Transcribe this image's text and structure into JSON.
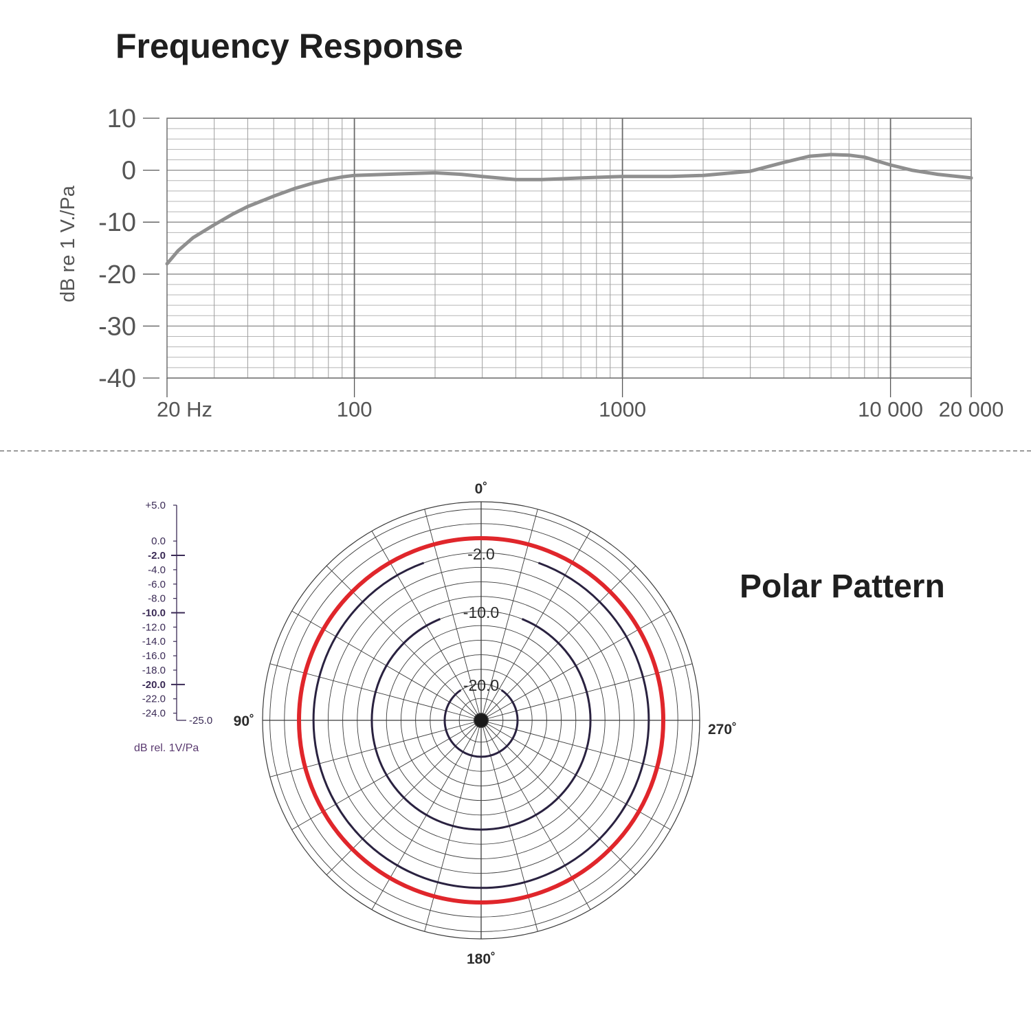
{
  "frequency_title": "Frequency Response",
  "polar_title": "Polar Pattern",
  "chart_data": [
    {
      "type": "line",
      "title": "Frequency Response",
      "xlabel": "",
      "ylabel": "dB re 1 V./Pa",
      "x_scale": "log",
      "xlim": [
        20,
        20000
      ],
      "ylim": [
        -40,
        10
      ],
      "x_ticks": [
        20,
        100,
        1000,
        10000,
        20000
      ],
      "x_tick_labels": [
        "20 Hz",
        "100",
        "1000",
        "10 000",
        "20 000"
      ],
      "y_ticks": [
        10,
        0,
        -10,
        -20,
        -30,
        -40
      ],
      "y_tick_labels": [
        "10",
        "0",
        "-10",
        "-20",
        "-30",
        "-40"
      ],
      "grid": true,
      "line_color": "#8f8f8f",
      "series": [
        {
          "x": [
            20,
            22,
            25,
            30,
            35,
            40,
            50,
            60,
            70,
            80,
            90,
            100,
            150,
            200,
            250,
            300,
            400,
            500,
            700,
            1000,
            1500,
            2000,
            3000,
            4000,
            5000,
            6000,
            7000,
            8000,
            10000,
            12000,
            15000,
            20000
          ],
          "y": [
            -18,
            -15.5,
            -13,
            -10.5,
            -8.5,
            -7,
            -5,
            -3.5,
            -2.5,
            -1.8,
            -1.3,
            -1,
            -0.7,
            -0.5,
            -0.8,
            -1.2,
            -1.8,
            -1.8,
            -1.5,
            -1.2,
            -1.2,
            -1,
            -0.2,
            1.5,
            2.7,
            3,
            2.9,
            2.5,
            1,
            0,
            -0.8,
            -1.5
          ]
        }
      ]
    },
    {
      "type": "polar",
      "title": "Polar Pattern",
      "angle_labels": [
        "0˚",
        "90˚",
        "180˚",
        "270˚"
      ],
      "scale_label": "dB rel. 1V/Pa",
      "scale_ticks": [
        "+5.0",
        "0.0",
        "-2.0",
        "-4.0",
        "-6.0",
        "-8.0",
        "-10.0",
        "-12.0",
        "-14.0",
        "-16.0",
        "-18.0",
        "-20.0",
        "-22.0",
        "-24.0",
        "-25.0"
      ],
      "bold_ticks": [
        "-2.0",
        "-10.0",
        "-20.0"
      ],
      "rlim": [
        -25,
        5
      ],
      "ring_labels": [
        "-2.0",
        "-10.0",
        "-20.0"
      ],
      "reference_rings_db": [
        -2,
        -10,
        -20
      ],
      "pattern_color": "#e0262b",
      "pattern": "omnidirectional",
      "pattern_level_db": 0
    }
  ]
}
